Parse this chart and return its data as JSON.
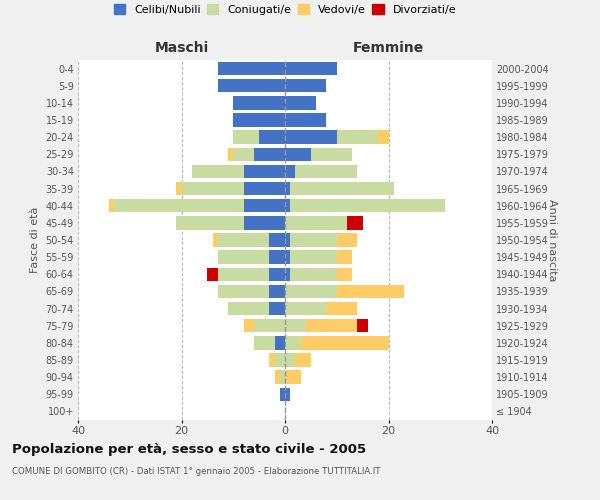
{
  "age_groups": [
    "100+",
    "95-99",
    "90-94",
    "85-89",
    "80-84",
    "75-79",
    "70-74",
    "65-69",
    "60-64",
    "55-59",
    "50-54",
    "45-49",
    "40-44",
    "35-39",
    "30-34",
    "25-29",
    "20-24",
    "15-19",
    "10-14",
    "5-9",
    "0-4"
  ],
  "birth_years": [
    "≤ 1904",
    "1905-1909",
    "1910-1914",
    "1915-1919",
    "1920-1924",
    "1925-1929",
    "1930-1934",
    "1935-1939",
    "1940-1944",
    "1945-1949",
    "1950-1954",
    "1955-1959",
    "1960-1964",
    "1965-1969",
    "1970-1974",
    "1975-1979",
    "1980-1984",
    "1985-1989",
    "1990-1994",
    "1995-1999",
    "2000-2004"
  ],
  "maschi": {
    "celibi": [
      0,
      1,
      0,
      0,
      2,
      0,
      3,
      3,
      3,
      3,
      3,
      8,
      8,
      8,
      8,
      6,
      5,
      10,
      10,
      13,
      13
    ],
    "coniugati": [
      0,
      0,
      1,
      2,
      4,
      6,
      8,
      10,
      10,
      10,
      10,
      13,
      25,
      12,
      10,
      4,
      5,
      0,
      0,
      0,
      0
    ],
    "vedovi": [
      0,
      0,
      1,
      1,
      0,
      2,
      0,
      0,
      0,
      0,
      1,
      0,
      1,
      1,
      0,
      1,
      0,
      0,
      0,
      0,
      0
    ],
    "divorziati": [
      0,
      0,
      0,
      0,
      0,
      0,
      0,
      0,
      2,
      0,
      0,
      0,
      0,
      0,
      0,
      0,
      0,
      0,
      0,
      0,
      0
    ]
  },
  "femmine": {
    "nubili": [
      0,
      1,
      0,
      0,
      0,
      0,
      0,
      0,
      1,
      1,
      1,
      0,
      1,
      1,
      2,
      5,
      10,
      8,
      6,
      8,
      10
    ],
    "coniugate": [
      0,
      0,
      0,
      2,
      3,
      4,
      8,
      10,
      9,
      9,
      9,
      12,
      30,
      20,
      12,
      8,
      8,
      0,
      0,
      0,
      0
    ],
    "vedove": [
      0,
      0,
      3,
      3,
      17,
      10,
      6,
      13,
      3,
      3,
      4,
      0,
      0,
      0,
      0,
      0,
      2,
      0,
      0,
      0,
      0
    ],
    "divorziate": [
      0,
      0,
      0,
      0,
      0,
      2,
      0,
      0,
      0,
      0,
      0,
      3,
      0,
      0,
      0,
      0,
      0,
      0,
      0,
      0,
      0
    ]
  },
  "colors": {
    "celibi_nubili": "#4472C4",
    "coniugati": "#c8dba0",
    "vedovi": "#FFCC66",
    "divorziati": "#CC0000"
  },
  "title": "Popolazione per età, sesso e stato civile - 2005",
  "subtitle": "COMUNE DI GOMBITO (CR) - Dati ISTAT 1° gennaio 2005 - Elaborazione TUTTITALIA.IT",
  "xlabel_left": "Maschi",
  "xlabel_right": "Femmine",
  "ylabel_left": "Fasce di età",
  "ylabel_right": "Anni di nascita",
  "xlim": 40,
  "background_color": "#f0f0f0",
  "plot_bg": "#ffffff"
}
